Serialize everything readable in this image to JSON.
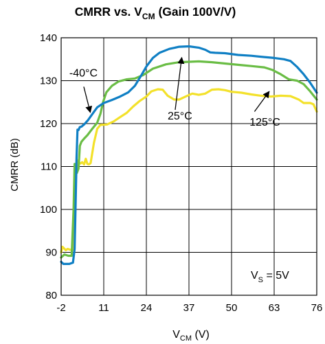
{
  "chart_data": {
    "type": "line",
    "title": {
      "main": "CMRR vs. V",
      "sub": "CM",
      "tail": " (Gain 100V/V)"
    },
    "xlabel": {
      "main": "V",
      "sub": "CM",
      "tail": " (V)"
    },
    "ylabel": "CMRR (dB)",
    "xlim": [
      -2,
      76
    ],
    "ylim": [
      80,
      140
    ],
    "xticks": [
      "-2",
      "11",
      "24",
      "37",
      "50",
      "63",
      "76"
    ],
    "xtick_values": [
      -2,
      11,
      24,
      37,
      50,
      63,
      76
    ],
    "yticks": [
      "80",
      "90",
      "100",
      "110",
      "120",
      "130",
      "140"
    ],
    "ytick_values": [
      80,
      90,
      100,
      110,
      120,
      130,
      140
    ],
    "grid": true,
    "annotations": [
      {
        "text": "-40°C",
        "x": 0.5,
        "y": 131,
        "arrow_from": [
          4.9,
          128.6
        ],
        "arrow_to": [
          6.9,
          122.6
        ]
      },
      {
        "text": "25°C",
        "x": 30.5,
        "y": 121,
        "arrow_from": [
          32.8,
          123.2
        ],
        "arrow_to": [
          34.8,
          135.4
        ]
      },
      {
        "text": "125°C",
        "x": 55.5,
        "y": 119.5,
        "arrow_from": [
          57,
          122.8
        ],
        "arrow_to": [
          61.5,
          127.5
        ]
      }
    ],
    "note": {
      "main": "V",
      "sub": "S",
      "tail": " = 5V"
    },
    "series": [
      {
        "name": "-40°C",
        "color": "#0f7fc4",
        "x": [
          -2,
          -1.3,
          0.5,
          1.6,
          2.1,
          2.4,
          2.7,
          3.0,
          3.3,
          3.7,
          4.2,
          5.0,
          6.2,
          7.6,
          9.0,
          11.0,
          13.5,
          16.0,
          18.5,
          20.5,
          22.5,
          24.0,
          26.0,
          28.0,
          31.0,
          34.0,
          37.0,
          40.0,
          42.0,
          43.5,
          45.0,
          48.0,
          52.0,
          56.0,
          60.0,
          63.0,
          66.0,
          68.0,
          70.0,
          72.0,
          74.0,
          76.0
        ],
        "y": [
          87.8,
          87.3,
          87.3,
          87.6,
          90.8,
          101.0,
          112.0,
          118.6,
          118.5,
          119.2,
          119.3,
          119.8,
          120.8,
          122.3,
          123.8,
          124.8,
          125.5,
          126.3,
          127.3,
          128.8,
          131.3,
          133.3,
          135.3,
          136.5,
          137.4,
          137.9,
          138.0,
          137.7,
          137.2,
          136.6,
          136.5,
          136.4,
          136.0,
          135.8,
          135.5,
          135.3,
          135.0,
          134.6,
          133.2,
          131.5,
          129.5,
          127.2
        ]
      },
      {
        "name": "25°C",
        "color": "#6abd45",
        "x": [
          -2,
          -1.0,
          0.2,
          1.2,
          1.8,
          2.1,
          2.4,
          2.8,
          3.3,
          3.7,
          4.2,
          5.0,
          6.0,
          7.5,
          9.0,
          10.0,
          10.8,
          11.8,
          13.5,
          15.5,
          18.0,
          20.5,
          23.0,
          26.0,
          30.0,
          34.0,
          37.0,
          40.0,
          44.0,
          48.0,
          52.0,
          56.0,
          60.0,
          62.5,
          65.0,
          67.5,
          70.0,
          72.0,
          74.0,
          76.0
        ],
        "y": [
          88.8,
          89.5,
          89.2,
          89.2,
          100.0,
          110.6,
          110.6,
          108.5,
          109.5,
          114.8,
          115.8,
          116.5,
          117.3,
          118.8,
          120.2,
          122.3,
          125.0,
          127.3,
          128.8,
          129.8,
          130.3,
          130.5,
          131.3,
          132.8,
          133.8,
          134.3,
          134.4,
          134.5,
          134.3,
          134.0,
          133.7,
          133.4,
          133.1,
          132.5,
          131.5,
          130.3,
          130.0,
          129.2,
          127.5,
          125.6
        ]
      },
      {
        "name": "125°C",
        "color": "#f3e12a",
        "x": [
          -2,
          -1.6,
          -1.2,
          -0.6,
          0.0,
          0.8,
          1.5,
          1.9,
          2.1,
          2.4,
          2.8,
          3.3,
          3.9,
          4.4,
          5.0,
          5.5,
          6.0,
          6.5,
          7.0,
          8.0,
          9.0,
          10.0,
          12.0,
          14.0,
          16.0,
          18.0,
          20.0,
          22.0,
          24.0,
          25.5,
          27.5,
          29.0,
          30.5,
          32.5,
          34.0,
          36.0,
          38.0,
          40.0,
          42.0,
          44.0,
          46.0,
          48.0,
          50.0,
          53.0,
          56.0,
          59.0,
          62.0,
          65.0,
          68.0,
          70.5,
          72.0,
          74.0,
          75.0,
          76.0
        ],
        "y": [
          90.0,
          91.3,
          91.0,
          90.5,
          90.8,
          90.6,
          90.6,
          92.0,
          98.0,
          106.0,
          111.5,
          111.0,
          110.7,
          111.0,
          110.5,
          111.8,
          110.6,
          110.5,
          110.8,
          115.5,
          118.8,
          119.7,
          119.8,
          120.5,
          121.5,
          122.5,
          124.0,
          125.3,
          126.3,
          127.5,
          128.0,
          127.9,
          126.5,
          125.6,
          125.6,
          126.3,
          127.0,
          126.7,
          127.0,
          127.9,
          128.0,
          127.8,
          127.4,
          127.2,
          126.8,
          126.5,
          126.3,
          126.5,
          126.4,
          125.6,
          124.8,
          124.8,
          124.5,
          122.8
        ]
      }
    ]
  }
}
